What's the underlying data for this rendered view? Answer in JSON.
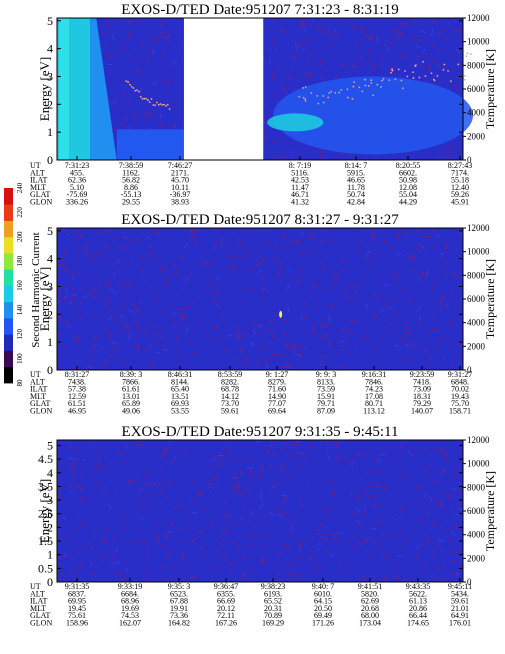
{
  "colorbar": {
    "label": "Second Harmonic Current",
    "ticks": [
      "80",
      "100",
      "120",
      "140",
      "160",
      "180",
      "200",
      "220",
      "240"
    ],
    "colors": [
      "#000000",
      "#3b0a55",
      "#1f2ab8",
      "#2257f0",
      "#1f8ff0",
      "#19cde8",
      "#22e0a0",
      "#8fe83a",
      "#e8e020",
      "#f0a020",
      "#e83a18",
      "#d81010"
    ]
  },
  "panels": [
    {
      "title": "EXOS-D/TED  Date:951207  7:31:23 - 8:31:19",
      "ylabel": "Energy [eV]",
      "y2label": "Temperature [K]",
      "yticks": [
        "0",
        "1",
        "2",
        "3",
        "4",
        "5"
      ],
      "y2ticks": [
        "0",
        "2000",
        "4000",
        "6000",
        "8000",
        "10000",
        "12000"
      ],
      "rowlabels": [
        "UT",
        "ALT",
        "ILAT",
        "MLT",
        "GLAT",
        "GLON"
      ],
      "columns": [
        [
          "7:31:23",
          "455.",
          "62.36",
          "5.10",
          "-75.69",
          "336.26"
        ],
        [
          "7:38:59",
          "1162.",
          "56.82",
          "8.86",
          "-55.13",
          "29.55"
        ],
        [
          "7:46:27",
          "2171.",
          "45.70",
          "10.11",
          "-36.97",
          "38.93"
        ],
        [
          "8: 7:19",
          "5116.",
          "42.53",
          "11.47",
          "46.71",
          "41.32"
        ],
        [
          "8:14: 7",
          "5915.",
          "46.65",
          "11.78",
          "50.74",
          "42.84"
        ],
        [
          "8:20:55",
          "6602.",
          "50.98",
          "12.08",
          "55.04",
          "44.29"
        ],
        [
          "8:27:43",
          "7174.",
          "55.18",
          "12.40",
          "59.26",
          "45.91"
        ]
      ]
    },
    {
      "title": "EXOS-D/TED  Date:951207  8:31:27 - 9:31:27",
      "ylabel": "Energy [eV]",
      "y2label": "Temperature [K]",
      "yticks": [
        "0",
        "1",
        "2",
        "3",
        "4",
        "5"
      ],
      "y2ticks": [
        "0",
        "2000",
        "4000",
        "6000",
        "8000",
        "10000",
        "12000"
      ],
      "rowlabels": [
        "UT",
        "ALT",
        "ILAT",
        "MLT",
        "GLAT",
        "GLON"
      ],
      "columns": [
        [
          "8:31:27",
          "7438.",
          "57.38",
          "12.59",
          "61.51",
          "46.95"
        ],
        [
          "8:39: 3",
          "7866.",
          "61.61",
          "13.01",
          "65.89",
          "49.06"
        ],
        [
          "8:46:31",
          "8144.",
          "65.40",
          "13.51",
          "69.93",
          "53.55"
        ],
        [
          "8:53:59",
          "8282.",
          "68.78",
          "14.12",
          "73.70",
          "59.61"
        ],
        [
          "9: 1:27",
          "8279.",
          "71.60",
          "14.90",
          "77.07",
          "69.64"
        ],
        [
          "9: 9: 3",
          "8133.",
          "73.59",
          "15.91",
          "79.71",
          "87.09"
        ],
        [
          "9:16:31",
          "7846.",
          "74.23",
          "17.08",
          "80.71",
          "113.12"
        ],
        [
          "9:23:59",
          "7418.",
          "73.09",
          "18.31",
          "79.29",
          "140.07"
        ],
        [
          "9:31:27",
          "6848.",
          "70.02",
          "19.43",
          "75.70",
          "158.71"
        ]
      ]
    },
    {
      "title": "EXOS-D/TED  Date:951207  9:31:35 - 9:45:11",
      "ylabel": "Energy [eV]",
      "y2label": "Temperature [K]",
      "yticks": [
        "0",
        "0.5",
        "1",
        "1.5",
        "2",
        "2.5",
        "3",
        "3.5",
        "4",
        "4.5",
        "5"
      ],
      "y2ticks": [
        "0",
        "2000",
        "4000",
        "6000",
        "8000",
        "10000",
        "12000"
      ],
      "rowlabels": [
        "UT",
        "ALT",
        "ILAT",
        "MLT",
        "GLAT",
        "GLON"
      ],
      "columns": [
        [
          "9:31:35",
          "6837.",
          "69.95",
          "19.45",
          "75.61",
          "158.96"
        ],
        [
          "9:33:19",
          "6684.",
          "68.96",
          "19.69",
          "74.53",
          "162.07"
        ],
        [
          "9:35: 3",
          "6523.",
          "67.88",
          "19.91",
          "73.36",
          "164.82"
        ],
        [
          "9:36:47",
          "6355.",
          "66.69",
          "20.12",
          "72.11",
          "167.26"
        ],
        [
          "9:38:23",
          "6193.",
          "65.52",
          "20.31",
          "70.89",
          "169.29"
        ],
        [
          "9:40: 7",
          "6010.",
          "64.15",
          "20.50",
          "69.49",
          "171.26"
        ],
        [
          "9:41:51",
          "5820.",
          "62.69",
          "20.68",
          "68.00",
          "173.04"
        ],
        [
          "9:43:35",
          "5622.",
          "61.13",
          "20.86",
          "66.44",
          "174.65"
        ],
        [
          "9:45:11",
          "5434.",
          "59.61",
          "21.01",
          "64.91",
          "176.01"
        ]
      ]
    }
  ],
  "chart_data": [
    {
      "type": "heatmap",
      "title": "EXOS-D/TED  Date:951207  7:31:23 - 8:31:19",
      "xlabel": "UT",
      "ylabel": "Energy [eV]",
      "y2label": "Temperature [K]",
      "ylim": [
        0,
        5.1
      ],
      "y2lim": [
        0,
        12000
      ],
      "grid": false,
      "data_gap": [
        "7:49:00",
        "8:00:00"
      ],
      "background_color": "#2a2ec8",
      "features": [
        {
          "name": "low-energy band",
          "ut": [
            "7:31:23",
            "7:36:00"
          ],
          "energy_ev": [
            0,
            5.1
          ],
          "color": "#1fc8e0"
        },
        {
          "name": "decaying band",
          "ut": [
            "7:36:00",
            "7:39:40"
          ],
          "energy_ev": [
            0,
            5.1
          ],
          "color": "#1f8ff0"
        },
        {
          "name": "post-gap band",
          "ut": [
            "8:00:00",
            "8:31:19"
          ],
          "energy_ev": [
            0.9,
            2.3
          ],
          "color": "#2257f0"
        }
      ],
      "temperature_trace_k": [
        {
          "ut": "7:41:00",
          "k": 6600
        },
        {
          "ut": "7:44:00",
          "k": 5000
        },
        {
          "ut": "7:47:00",
          "k": 4500
        },
        {
          "ut": "8:05:00",
          "k": 5200
        },
        {
          "ut": "8:15:00",
          "k": 6500
        },
        {
          "ut": "8:25:00",
          "k": 7400
        }
      ]
    },
    {
      "type": "heatmap",
      "title": "EXOS-D/TED  Date:951207  8:31:27 - 9:31:27",
      "xlabel": "UT",
      "ylabel": "Energy [eV]",
      "y2label": "Temperature [K]",
      "ylim": [
        0,
        5.1
      ],
      "y2lim": [
        0,
        12000
      ],
      "grid": false,
      "background_color": "#2a2ec8",
      "features": [
        {
          "name": "isolated spot",
          "ut": "9: 4:30",
          "energy_ev": 2.0,
          "color": "#f0f060"
        }
      ]
    },
    {
      "type": "heatmap",
      "title": "EXOS-D/TED  Date:951207  9:31:35 - 9:45:11",
      "xlabel": "UT",
      "ylabel": "Energy [eV]",
      "y2label": "Temperature [K]",
      "ylim": [
        0,
        5.2
      ],
      "y2lim": [
        0,
        12000
      ],
      "grid": false,
      "background_color": "#2a2ec8",
      "features": []
    }
  ]
}
